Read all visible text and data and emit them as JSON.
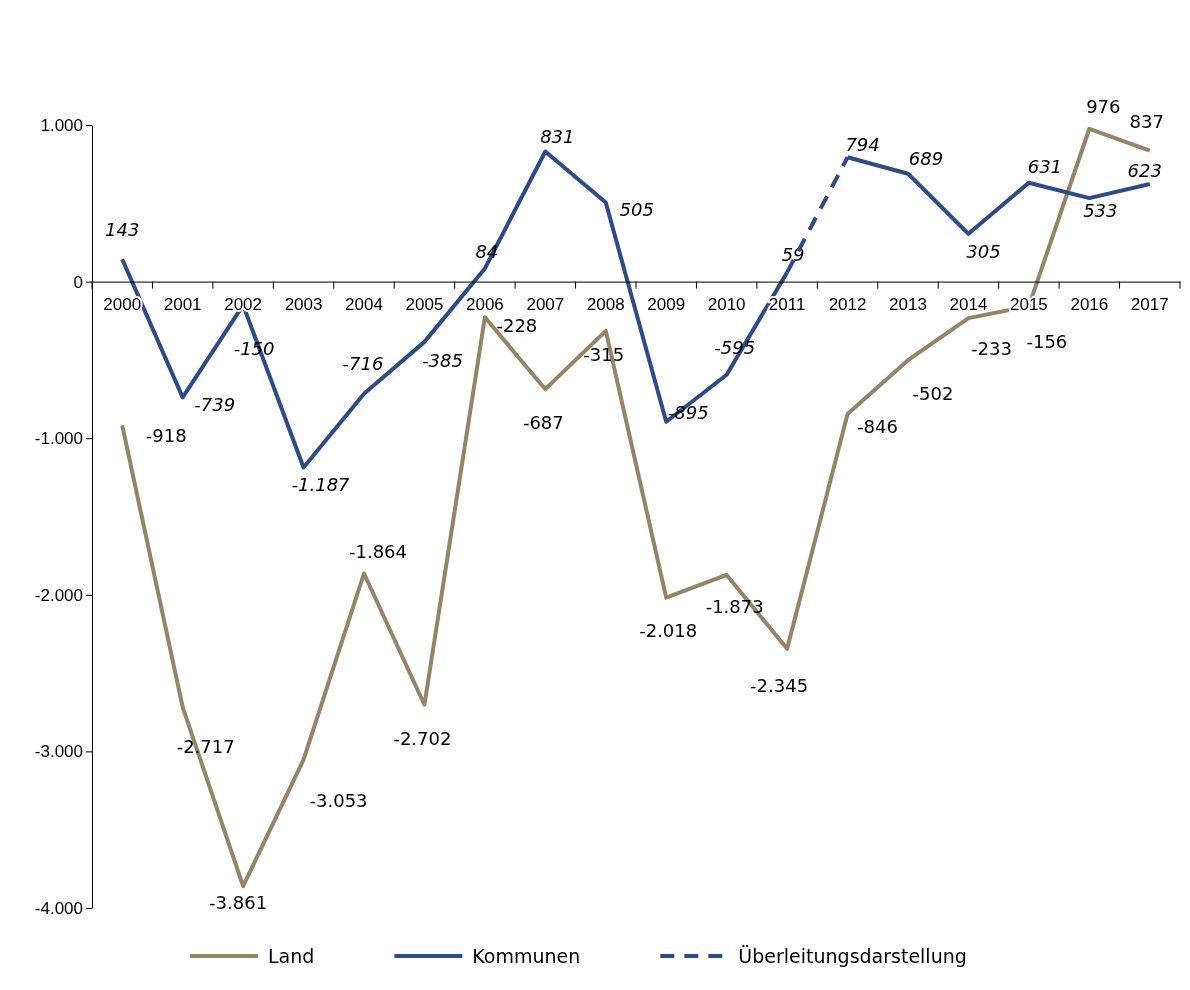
{
  "chart_data": {
    "type": "line",
    "categories": [
      "2000",
      "2001",
      "2002",
      "2003",
      "2004",
      "2005",
      "2006",
      "2007",
      "2008",
      "2009",
      "2010",
      "2011",
      "2012",
      "2013",
      "2014",
      "2015",
      "2016",
      "2017"
    ],
    "ylim": [
      -4000,
      1000
    ],
    "yticks": [
      {
        "value": -4000,
        "label": "-4.000"
      },
      {
        "value": -3000,
        "label": "-3.000"
      },
      {
        "value": -2000,
        "label": "-2.000"
      },
      {
        "value": -1000,
        "label": "-1.000"
      },
      0,
      {
        "value": 1000,
        "label": "1.000"
      }
    ],
    "grid": false,
    "legend": "bottom",
    "marker": "none",
    "series": [
      {
        "name": "Land",
        "color": "#948468",
        "line_style": "solid",
        "values": [
          -918,
          -2717,
          -3861,
          -3053,
          -1864,
          -2702,
          -228,
          -687,
          -315,
          -2018,
          -1873,
          -2345,
          -846,
          -502,
          -233,
          -156,
          976,
          837
        ],
        "value_labels": [
          "-918",
          "-2.717",
          "-3.861",
          "-3.053",
          "-1.864",
          "-2.702",
          "-228",
          "-687",
          "-315",
          "-2.018",
          "-1.873",
          "-2.345",
          "-846",
          "-502",
          "-233",
          "-156",
          "976",
          "837"
        ]
      },
      {
        "name": "Kommunen",
        "color": "#2e4a87",
        "line_style": "solid",
        "values": [
          143,
          -739,
          -150,
          -1187,
          -716,
          -385,
          84,
          831,
          505,
          -895,
          -595,
          59,
          null,
          null,
          null,
          null,
          null,
          null
        ],
        "value_labels": [
          "143",
          "-739",
          "-150",
          "-1.187",
          "-716",
          "-385",
          "84",
          "831",
          "505",
          "-895",
          "-595",
          "59",
          null,
          null,
          null,
          null,
          null,
          null
        ]
      },
      {
        "name": "Überleitungsdarstellung",
        "color": "#2e4a87",
        "line_style": "dashed",
        "values": [
          null,
          null,
          null,
          null,
          null,
          null,
          null,
          null,
          null,
          null,
          null,
          59,
          794,
          null,
          null,
          null,
          null,
          null
        ]
      },
      {
        "color": "#2e4a87",
        "line_style": "solid",
        "values": [
          null,
          null,
          null,
          null,
          null,
          null,
          null,
          null,
          null,
          null,
          null,
          null,
          794,
          689,
          305,
          631,
          533,
          623
        ],
        "value_labels": [
          null,
          null,
          null,
          null,
          null,
          null,
          null,
          null,
          null,
          null,
          null,
          null,
          "794",
          "689",
          "305",
          "631",
          "533",
          "623"
        ]
      }
    ]
  }
}
